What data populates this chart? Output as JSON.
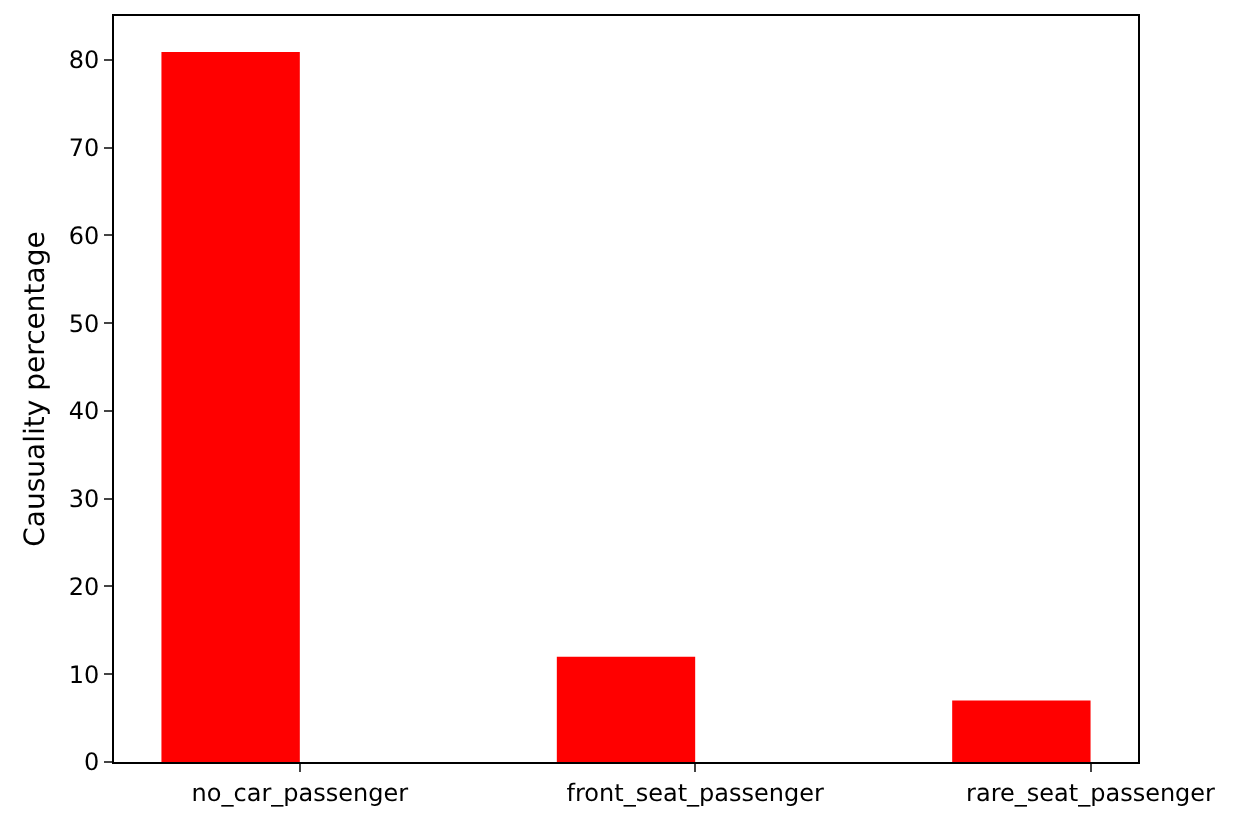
{
  "chart_data": {
    "type": "bar",
    "categories": [
      "no_car_passenger",
      "front_seat_passenger",
      "rare_seat_passenger"
    ],
    "values": [
      80.9,
      12.0,
      7.0
    ],
    "color": "#ff0000",
    "ylabel": "Causuality percentage",
    "ylim": [
      0,
      85
    ],
    "yticks": [
      0,
      10,
      20,
      30,
      40,
      50,
      60,
      70,
      80
    ],
    "legend": false
  }
}
